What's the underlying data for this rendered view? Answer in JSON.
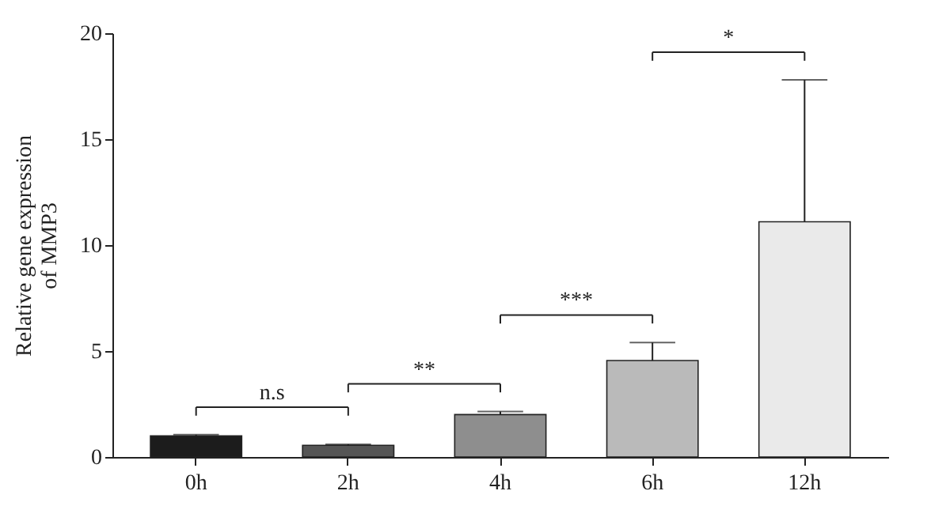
{
  "chart_data": {
    "type": "bar",
    "ylabel": "Relative gene expression\nof MMP3",
    "categories": [
      "0h",
      "2h",
      "4h",
      "6h",
      "12h"
    ],
    "values": [
      1.0,
      0.55,
      2.0,
      4.55,
      11.1
    ],
    "colors": [
      "#1c1c1c",
      "#555555",
      "#8e8e8e",
      "#bababa",
      "#eaeaea"
    ],
    "errors": [
      [
        1.0,
        1.05
      ],
      [
        0.55,
        0.6
      ],
      [
        2.0,
        2.15
      ],
      [
        4.55,
        5.4
      ],
      [
        11.1,
        17.8
      ]
    ],
    "ylim": [
      0,
      20
    ],
    "yticks": [
      0,
      5,
      10,
      15,
      20
    ],
    "grid": false,
    "annotations": [
      "n.s",
      "**",
      "***",
      "*"
    ]
  }
}
